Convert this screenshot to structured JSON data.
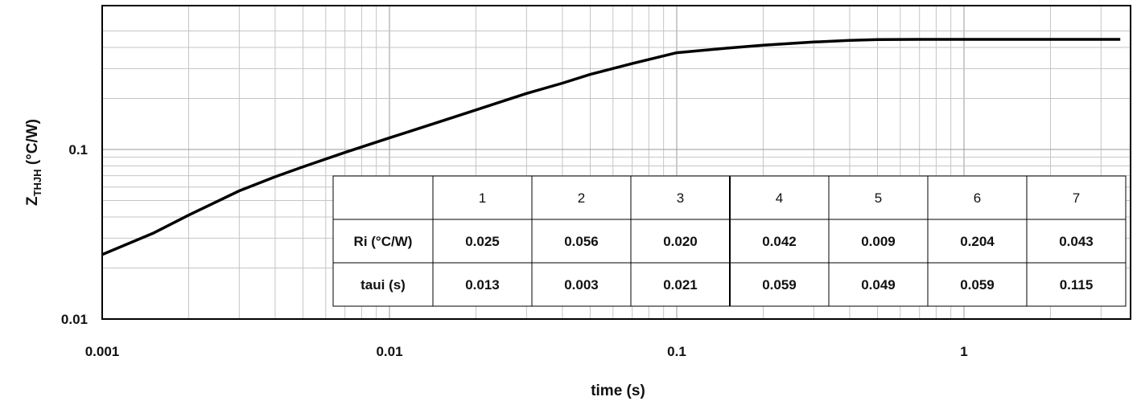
{
  "chart_data": {
    "type": "line",
    "xlabel": "time (s)",
    "ylabel_main": "Z",
    "ylabel_sub": "THJH",
    "ylabel_unit": " (°C/W)",
    "xscale": "log",
    "yscale": "log",
    "xlim": [
      0.001,
      3.5
    ],
    "ylim": [
      0.01,
      0.6
    ],
    "x_ticks": [
      {
        "value": 0.001,
        "label": "0.001"
      },
      {
        "value": 0.01,
        "label": "0.01"
      },
      {
        "value": 0.1,
        "label": "0.1"
      },
      {
        "value": 1,
        "label": "1"
      }
    ],
    "y_ticks": [
      {
        "value": 0.01,
        "label": "0.01"
      },
      {
        "value": 0.1,
        "label": "0.1"
      }
    ],
    "grid": true,
    "series": [
      {
        "x": [
          0.001,
          0.0015,
          0.002,
          0.003,
          0.004,
          0.005,
          0.007,
          0.01,
          0.015,
          0.02,
          0.03,
          0.04,
          0.05,
          0.07,
          0.1,
          0.15,
          0.2,
          0.3,
          0.4,
          0.5,
          0.7,
          1,
          2,
          3.5
        ],
        "y": [
          0.024,
          0.032,
          0.041,
          0.057,
          0.069,
          0.079,
          0.096,
          0.117,
          0.146,
          0.171,
          0.214,
          0.246,
          0.277,
          0.321,
          0.372,
          0.396,
          0.412,
          0.43,
          0.44,
          0.445,
          0.446,
          0.446,
          0.446,
          0.446
        ]
      }
    ]
  },
  "table": {
    "header": [
      "",
      "1",
      "2",
      "3",
      "4",
      "5",
      "6",
      "7"
    ],
    "rows": [
      {
        "label": "Ri (°C/W)",
        "values": [
          "0.025",
          "0.056",
          "0.020",
          "0.042",
          "0.009",
          "0.204",
          "0.043"
        ]
      },
      {
        "label": "taui (s)",
        "values": [
          "0.013",
          "0.003",
          "0.021",
          "0.059",
          "0.049",
          "0.059",
          "0.115"
        ]
      }
    ]
  }
}
